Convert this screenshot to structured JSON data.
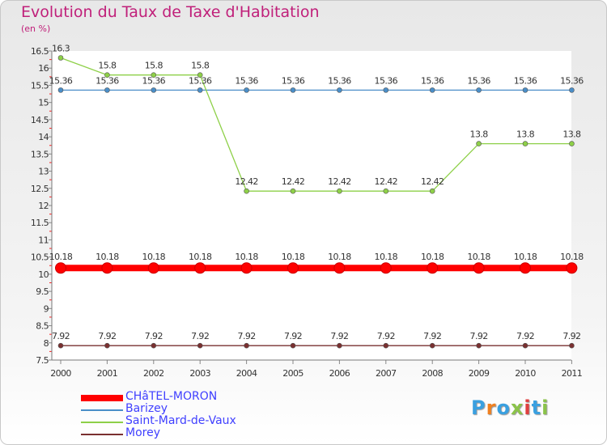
{
  "title": "Evolution du Taux de Taxe d'Habitation",
  "unit_note": "(en %)",
  "logo": {
    "text": "Proxiti",
    "colors": [
      "#3aa0e0",
      "#f08020",
      "#3aa0e0",
      "#8bc34a",
      "#e04040",
      "#3aa0e0",
      "#8bc34a"
    ]
  },
  "chart_data": {
    "type": "line",
    "x": [
      "2000",
      "2001",
      "2002",
      "2003",
      "2004",
      "2005",
      "2006",
      "2007",
      "2008",
      "2009",
      "2010",
      "2011"
    ],
    "yticks": [
      "7.5",
      "8",
      "8.5",
      "9",
      "9.5",
      "10",
      "10.5",
      "11",
      "11.5",
      "12",
      "12.5",
      "13",
      "13.5",
      "14",
      "14.5",
      "15",
      "15.5",
      "16",
      "16.5"
    ],
    "ylim": [
      7.5,
      16.5
    ],
    "series": [
      {
        "name": "CHâTEL-MORON",
        "color": "#ff0000",
        "values": [
          10.18,
          10.18,
          10.18,
          10.18,
          10.18,
          10.18,
          10.18,
          10.18,
          10.18,
          10.18,
          10.18,
          10.18
        ]
      },
      {
        "name": "Barizey",
        "color": "#4a8ec8",
        "values": [
          15.36,
          15.36,
          15.36,
          15.36,
          15.36,
          15.36,
          15.36,
          15.36,
          15.36,
          15.36,
          15.36,
          15.36
        ]
      },
      {
        "name": "Saint-Mard-de-Vaux",
        "color": "#8ed048",
        "values": [
          16.3,
          15.8,
          15.8,
          15.8,
          12.42,
          12.42,
          12.42,
          12.42,
          12.42,
          13.8,
          13.8,
          13.8
        ]
      },
      {
        "name": "Morey",
        "color": "#7a3030",
        "values": [
          7.92,
          7.92,
          7.92,
          7.92,
          7.92,
          7.92,
          7.92,
          7.92,
          7.92,
          7.92,
          7.92,
          7.92
        ]
      }
    ]
  }
}
